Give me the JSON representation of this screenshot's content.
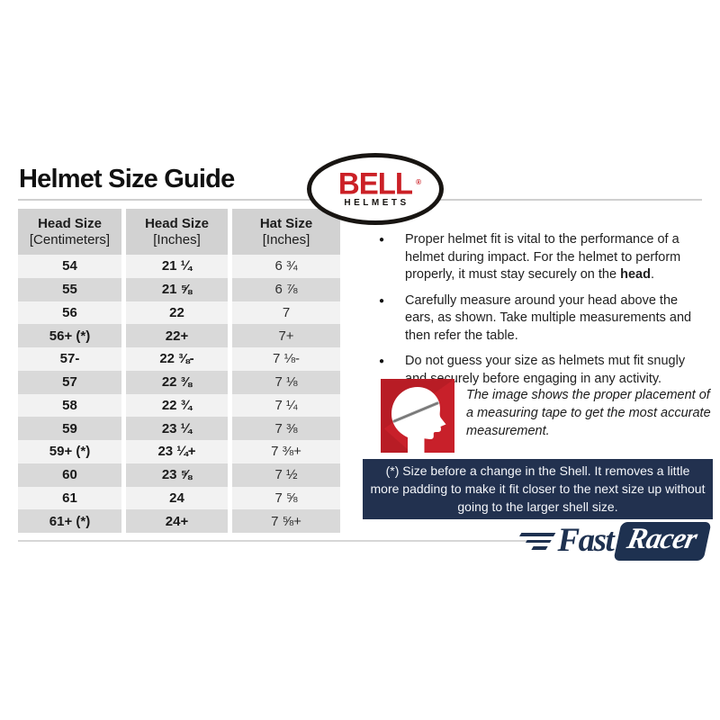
{
  "page_title": "Helmet Size Guide",
  "bell_logo": {
    "brand": "BELL",
    "registered": "®",
    "subtitle": "HELMETS"
  },
  "size_table": {
    "headers": [
      {
        "line1": "Head Size",
        "line2": "[Centimeters]"
      },
      {
        "line1": "Head Size",
        "line2": "[Inches]"
      },
      {
        "line1": "Hat Size",
        "line2": "[Inches]"
      }
    ],
    "rows": [
      [
        "54",
        "21 ¼",
        "6 ¾"
      ],
      [
        "55",
        "21 ⅝",
        "6 ⅞"
      ],
      [
        "56",
        "22",
        "7"
      ],
      [
        "56+ (*)",
        "22+",
        "7+"
      ],
      [
        "57-",
        "22 ⅜-",
        "7 ⅛-"
      ],
      [
        "57",
        "22 ⅜",
        "7 ⅛"
      ],
      [
        "58",
        "22 ¾",
        "7 ¼"
      ],
      [
        "59",
        "23 ¼",
        "7 ⅜"
      ],
      [
        "59+ (*)",
        "23 ¼+",
        "7 ⅜+"
      ],
      [
        "60",
        "23 ⅝",
        "7 ½"
      ],
      [
        "61",
        "24",
        "7 ⅝"
      ],
      [
        "61+ (*)",
        "24+",
        "7 ⅝+"
      ]
    ]
  },
  "bullets": [
    {
      "marker": "●",
      "prefix": "Proper helmet fit is vital to the performance of a helmet during impact. For the helmet to perform properly, it must stay securely on the ",
      "bold": "head",
      "suffix": "."
    },
    {
      "marker": "●",
      "text": "Carefully measure around your head above the ears, as shown. Take multiple measurements and then refer the table."
    },
    {
      "marker": "●",
      "text": "Do not guess your size as helmets mut fit snugly and securely before engaging in any activity."
    }
  ],
  "measurement_caption": "The image shows the proper placement of a measuring tape to get the most accurate measurement.",
  "shell_note": "(*) Size before a change in the Shell. It removes a little more padding to make it fit closer to the next size up without going to the larger shell size.",
  "footer_logo": {
    "fast": "Fast",
    "racer": "Racer"
  },
  "colors": {
    "bell_red": "#cb2026",
    "navy": "#1e3150",
    "note_bg": "#22314f",
    "row_light": "#f2f2f2",
    "row_dark": "#d9d9d9",
    "header_gray": "#d2d2d2"
  }
}
